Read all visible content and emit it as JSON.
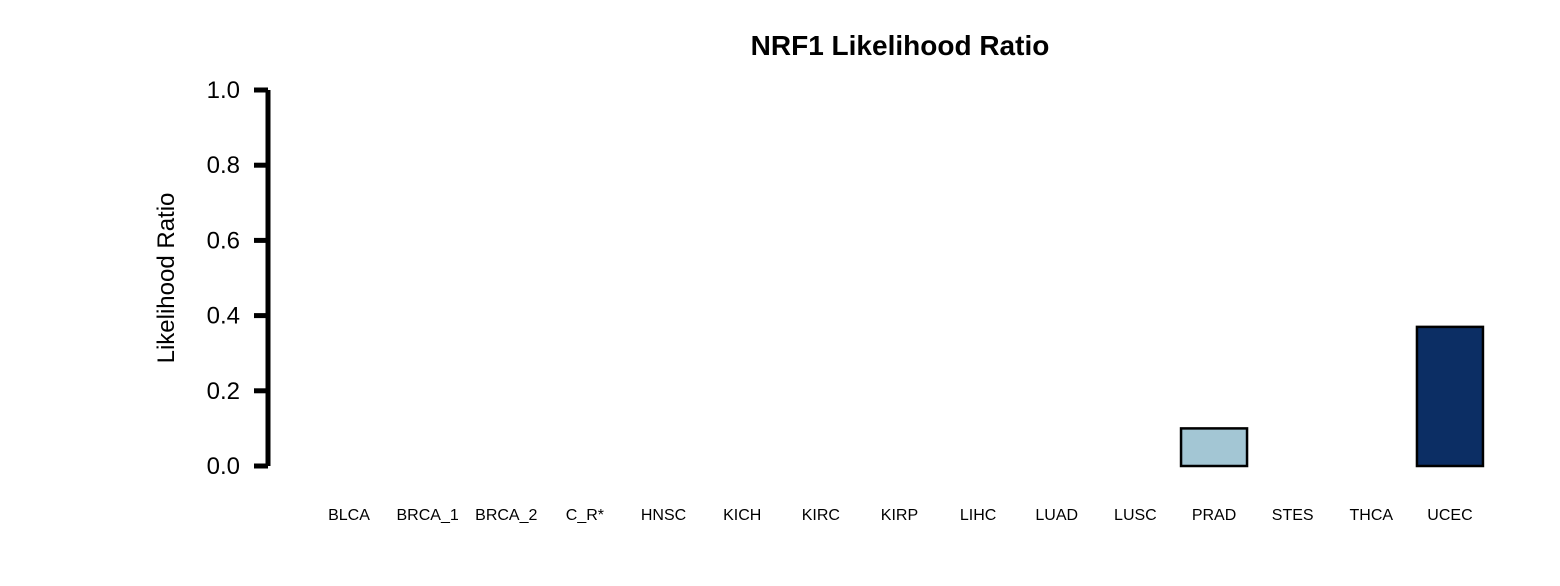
{
  "chart_data": {
    "type": "bar",
    "title": "NRF1 Likelihood Ratio",
    "xlabel": "",
    "ylabel": "Likelihood Ratio",
    "ylim": [
      0,
      1.0
    ],
    "yticks": [
      "0.0",
      "0.2",
      "0.4",
      "0.6",
      "0.8",
      "1.0"
    ],
    "categories": [
      "BLCA",
      "BRCA_1",
      "BRCA_2",
      "C_R*",
      "HNSC",
      "KICH",
      "KIRC",
      "KIRP",
      "LIHC",
      "LUAD",
      "LUSC",
      "PRAD",
      "STES",
      "THCA",
      "UCEC"
    ],
    "values": [
      0,
      0,
      0,
      0,
      0,
      0,
      0,
      0,
      0,
      0,
      0,
      0.1,
      0,
      0,
      0.37
    ],
    "bar_colors": [
      "#ffffff",
      "#ffffff",
      "#ffffff",
      "#ffffff",
      "#ffffff",
      "#ffffff",
      "#ffffff",
      "#ffffff",
      "#ffffff",
      "#ffffff",
      "#ffffff",
      "#a3c6d4",
      "#ffffff",
      "#ffffff",
      "#0c2e64"
    ],
    "grid": false,
    "legend": "none"
  }
}
